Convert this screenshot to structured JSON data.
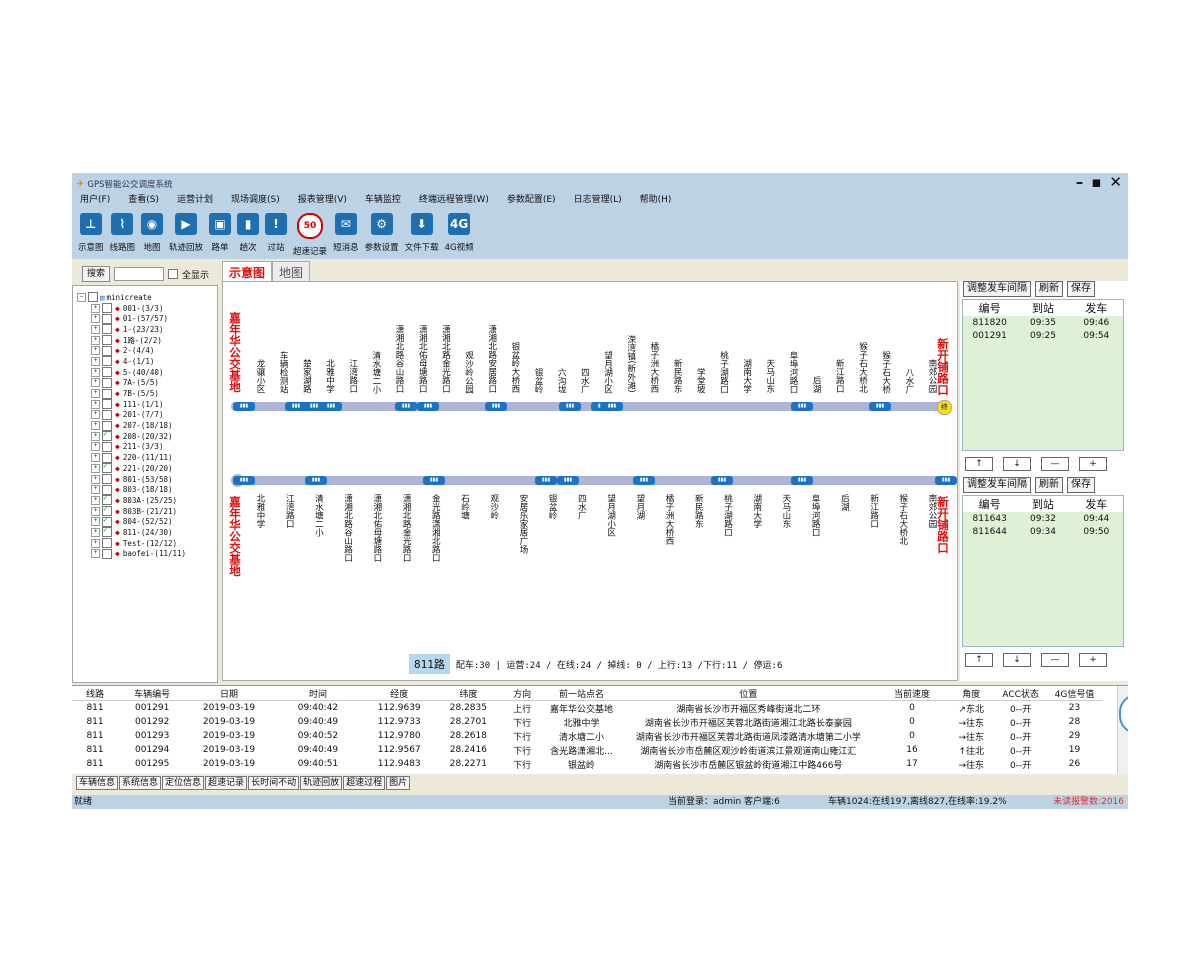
{
  "app": {
    "title": "GPS智能公交调度系统"
  },
  "menu": [
    "用户(F)",
    "查看(S)",
    "运营计划",
    "现场调度(S)",
    "报表管理(V)",
    "车辆监控",
    "终端远程管理(W)",
    "参数配置(E)",
    "日志管理(L)",
    "帮助(H)"
  ],
  "toolbar": [
    {
      "label": "示意图",
      "icon": "diagram-icon"
    },
    {
      "label": "线路图",
      "icon": "route-map-icon"
    },
    {
      "label": "地图",
      "icon": "globe-icon"
    },
    {
      "label": "轨迹回放",
      "icon": "play-icon"
    },
    {
      "label": "路单",
      "icon": "waybill-icon"
    },
    {
      "label": "趟次",
      "icon": "trip-icon"
    },
    {
      "label": "过站",
      "icon": "alert-icon"
    },
    {
      "label": "超速记录",
      "icon": "speed-limit-icon"
    },
    {
      "label": "短消息",
      "icon": "message-icon"
    },
    {
      "label": "参数设置",
      "icon": "settings-icon"
    },
    {
      "label": "文件下载",
      "icon": "download-icon"
    },
    {
      "label": "4G视频",
      "icon": "video-4g-icon"
    }
  ],
  "left": {
    "search_label": "搜索",
    "show_all_label": "全显示",
    "tree_root": "minicreate",
    "routes": [
      {
        "label": "001-(3/3)",
        "checked": false
      },
      {
        "label": "01-(57/57)",
        "checked": false
      },
      {
        "label": "1-(23/23)",
        "checked": false
      },
      {
        "label": "1路-(2/2)",
        "checked": false
      },
      {
        "label": "2-(4/4)",
        "checked": false
      },
      {
        "label": "4-(1/1)",
        "checked": false
      },
      {
        "label": "5-(40/40)",
        "checked": false
      },
      {
        "label": "7A-(5/5)",
        "checked": false
      },
      {
        "label": "7B-(5/5)",
        "checked": false
      },
      {
        "label": "111-(1/1)",
        "checked": false
      },
      {
        "label": "201-(7/7)",
        "checked": false
      },
      {
        "label": "207-(18/18)",
        "checked": false
      },
      {
        "label": "208-(20/32)",
        "checked": true
      },
      {
        "label": "211-(3/3)",
        "checked": false
      },
      {
        "label": "220-(11/11)",
        "checked": false
      },
      {
        "label": "221-(20/20)",
        "checked": true
      },
      {
        "label": "801-(53/58)",
        "checked": false
      },
      {
        "label": "803-(18/18)",
        "checked": false
      },
      {
        "label": "803A-(25/25)",
        "checked": true
      },
      {
        "label": "803B-(21/21)",
        "checked": true
      },
      {
        "label": "804-(52/52)",
        "checked": true
      },
      {
        "label": "811-(24/30)",
        "checked": true
      },
      {
        "label": "Test-(12/12)",
        "checked": false
      },
      {
        "label": "baofei-(11/11)",
        "checked": false
      }
    ]
  },
  "tabs": [
    "示意图",
    "地图"
  ],
  "diagram": {
    "start_terminal": "嘉年华公交基地",
    "end_terminal": "新开铺路口",
    "end_badge": "终",
    "top_stations": [
      "龙骧小区",
      "车辆检测站",
      "楚家湖路",
      "北雅中学",
      "江湾路口",
      "清水塘二小",
      "潇湘北路谷山路口",
      "潇湘北佑母塘路口",
      "潇湘北路金光路口",
      "观沙岭公园",
      "潇湘北路安居路口",
      "银盆岭大桥西",
      "银盆岭",
      "六沟垅",
      "四水厂",
      "望月湖小区",
      "溁湾镇(新外滩)",
      "橘子洲大桥西",
      "新民路东",
      "学堂坡",
      "桃子湖路口",
      "湖南大学",
      "天马山东",
      "阜埠河路口",
      "后湖",
      "新江路口",
      "猴子石大桥北",
      "猴子石大桥",
      "八水厂",
      "南郊公园"
    ],
    "bottom_stations": [
      "北雅中学",
      "江湾路口",
      "清水塘二小",
      "潇湘北路谷山路口",
      "潇湘北佑母塘路口",
      "潇湘北路金光路口",
      "金光路潇湘北路口",
      "石岭塘",
      "观沙岭",
      "安居乐家居广场",
      "银盆岭",
      "四水厂",
      "望月湖小区",
      "望月湖",
      "橘子洲大桥西",
      "新民路东",
      "桃子湖路口",
      "湖南大学",
      "天马山东",
      "阜埠河路口",
      "后湖",
      "新江路口",
      "猴子石大桥北",
      "南郊公园"
    ],
    "summary_route": "811路",
    "summary_text": "配车:30 | 运营:24 / 在线:24 / 掉线: 0 / 上行:13 /下行:11 / 停运:6"
  },
  "right": {
    "buttons": [
      "调整发车间隔",
      "刷新",
      "保存"
    ],
    "headers": [
      "编号",
      "到站",
      "发车"
    ],
    "upper_rows": [
      [
        "811820",
        "09:35",
        "09:46"
      ],
      [
        "001291",
        "09:25",
        "09:54"
      ]
    ],
    "lower_rows": [
      [
        "811643",
        "09:32",
        "09:44"
      ],
      [
        "811644",
        "09:34",
        "09:50"
      ]
    ],
    "arrow_buttons": [
      "↑",
      "↓",
      "—",
      "+"
    ]
  },
  "grid": {
    "columns": [
      "线路",
      "车辆编号",
      "日期",
      "时间",
      "经度",
      "纬度",
      "方向",
      "前一站点名",
      "位置",
      "当前速度",
      "角度",
      "ACC状态",
      "4G信号值"
    ],
    "rows": [
      [
        "811",
        "001291",
        "2019-03-19",
        "09:40:42",
        "112.9639",
        "28.2835",
        "上行",
        "嘉年华公交基地",
        "湖南省长沙市开福区秀峰街道北二环",
        "0",
        "↗东北",
        "0--开",
        "23"
      ],
      [
        "811",
        "001292",
        "2019-03-19",
        "09:40:49",
        "112.9733",
        "28.2701",
        "下行",
        "北雅中学",
        "湖南省长沙市开福区芙蓉北路街道湘江北路长泰豪园",
        "0",
        "→往东",
        "0--开",
        "28"
      ],
      [
        "811",
        "001293",
        "2019-03-19",
        "09:40:52",
        "112.9780",
        "28.2618",
        "下行",
        "清水塘二小",
        "湖南省长沙市开福区芙蓉北路街道凤漆路清水塘第二小学",
        "0",
        "→往东",
        "0--开",
        "29"
      ],
      [
        "811",
        "001294",
        "2019-03-19",
        "09:40:49",
        "112.9567",
        "28.2416",
        "下行",
        "含光路潇湘北...",
        "湖南省长沙市岳麓区观沙岭街道滨江景观道南山雍江汇",
        "16",
        "↑往北",
        "0--开",
        "19"
      ],
      [
        "811",
        "001295",
        "2019-03-19",
        "09:40:51",
        "112.9483",
        "28.2271",
        "下行",
        "银盆岭",
        "湖南省长沙市岳麓区银盆岭街道湘江中路466号",
        "17",
        "→往东",
        "0--开",
        "26"
      ]
    ]
  },
  "bottom_tabs": [
    "车辆信息",
    "系统信息",
    "定位信息",
    "超速记录",
    "长时间不动",
    "轨迹回放",
    "超速过程",
    "图片"
  ],
  "status": {
    "ready": "就绪",
    "login": "当前登录：admin  客户端:6",
    "vehicles": "车辆1024:在线197,离线827,在线率:19.2%",
    "alarm": "未读报警数:2016",
    "alarm_color": "#e0302a"
  }
}
